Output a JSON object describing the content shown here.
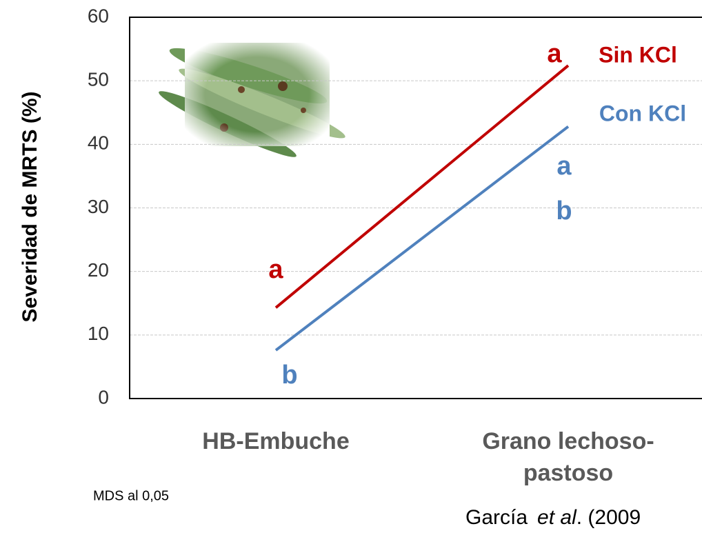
{
  "chart_data": {
    "type": "line",
    "ylabel": "Severidad de MRTS (%)",
    "categories": [
      "HB-Embuche",
      "Grano lechoso-pastoso"
    ],
    "series": [
      {
        "name": "Sin KCl",
        "color": "#c00000",
        "values": [
          14.3,
          52.4
        ]
      },
      {
        "name": "Con KCl",
        "color": "#4f81bd",
        "values": [
          7.6,
          42.8
        ]
      }
    ],
    "ylim": [
      0,
      60
    ],
    "yticks": [
      0,
      10,
      20,
      30,
      40,
      50,
      60
    ],
    "grid": true,
    "annotations": [
      {
        "text": "a",
        "color": "#c00000"
      },
      {
        "text": "b",
        "color": "#4f81bd"
      },
      {
        "text": "a",
        "color": "#c00000"
      },
      {
        "text": "a",
        "color": "#4f81bd"
      },
      {
        "text": "b",
        "color": "#4f81bd"
      }
    ],
    "note": "MDS al 0,05",
    "source": {
      "author": "García",
      "etal": "et al",
      "rest": ". (2009"
    }
  }
}
